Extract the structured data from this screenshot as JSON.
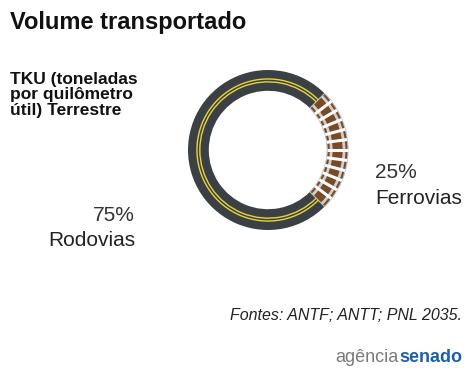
{
  "chart_data": {
    "type": "pie",
    "title": "Volume transportado",
    "subtitle": "TKU (toneladas\npor quilômetro\nútil) Terrestre",
    "categories": [
      "Ferrovias",
      "Rodovias"
    ],
    "values": [
      25,
      75
    ],
    "value_labels": [
      "25%",
      "75%"
    ],
    "colors": [
      "#7a4a26",
      "#3b4045"
    ],
    "data_labels": true,
    "source": "Fontes: ANTF; ANTT; PNL 2035.",
    "credit": [
      "agência",
      "senado"
    ]
  }
}
